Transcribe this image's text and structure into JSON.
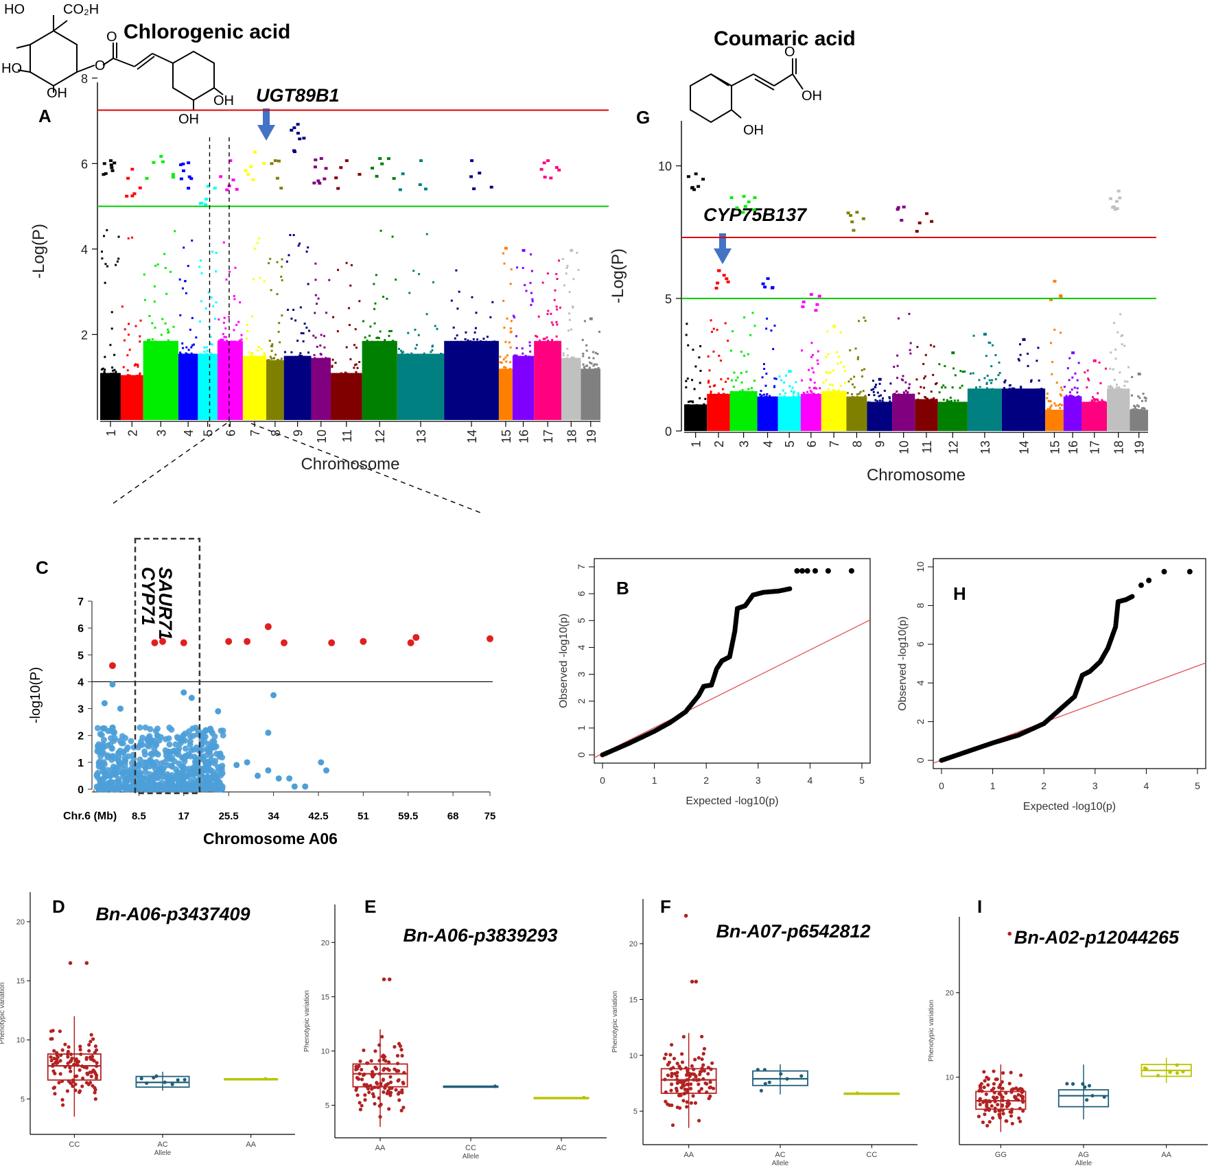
{
  "figure": {
    "chem_A": {
      "name": "Chlorogenic acid",
      "groups": [
        "HO",
        "CO₂H",
        "HO",
        "O",
        "O",
        "OH",
        "OH",
        "OH"
      ]
    },
    "chem_G": {
      "name": "Coumaric acid",
      "groups": [
        "O",
        "OH",
        "OH"
      ]
    }
  },
  "chart_data": [
    {
      "id": "A",
      "type": "scatter",
      "subtype": "manhattan",
      "title": "Chlorogenic acid",
      "xlabel": "Chromosome",
      "ylabel": "-Log(P)",
      "ylim": [
        0,
        7.9
      ],
      "yticks": [
        2,
        4,
        6,
        8
      ],
      "chromosomes": [
        "1",
        "2",
        "3",
        "4",
        "5",
        "6",
        "7",
        "8",
        "9",
        "10",
        "11",
        "12",
        "13",
        "14",
        "15",
        "16",
        "17",
        "18",
        "19"
      ],
      "bands": [
        [
          0,
          1.05
        ],
        [
          1.05,
          2.2
        ],
        [
          2.2,
          4.0
        ],
        [
          4.0,
          5.0
        ],
        [
          5.0,
          6.0
        ],
        [
          6.0,
          7.3
        ],
        [
          7.3,
          8.5
        ],
        [
          8.5,
          9.4
        ],
        [
          9.4,
          10.8
        ],
        [
          10.8,
          11.8
        ],
        [
          11.8,
          13.4
        ],
        [
          13.4,
          15.2
        ],
        [
          15.2,
          17.6
        ],
        [
          17.6,
          20.4
        ],
        [
          20.4,
          21.1
        ],
        [
          21.1,
          22.2
        ],
        [
          22.2,
          23.6
        ],
        [
          23.6,
          24.6
        ],
        [
          24.6,
          25.6
        ]
      ],
      "colors": [
        "#000000",
        "#ff0000",
        "#00ee00",
        "#0000ff",
        "#00ffff",
        "#ff00ff",
        "#ffff00",
        "#808000",
        "#000080",
        "#800080",
        "#800000",
        "#008000",
        "#008080",
        "#000080",
        "#ff8000",
        "#8000ff",
        "#ff0080",
        "#c0c0c0",
        "#808080"
      ],
      "baseline_top": [
        1.1,
        1.05,
        1.85,
        1.55,
        1.55,
        1.85,
        1.5,
        1.4,
        1.5,
        1.45,
        1.1,
        1.85,
        1.55,
        1.85,
        1.2,
        1.5,
        1.85,
        1.45,
        1.2
      ],
      "max_minuslog10p": [
        6.1,
        5.9,
        6.2,
        6.05,
        5.5,
        6.1,
        6.3,
        6.1,
        6.95,
        6.15,
        6.1,
        6.15,
        6.1,
        6.1,
        4.05,
        4.0,
        6.1,
        4.0,
        2.4
      ],
      "thresholds": [
        {
          "value": 7.25,
          "color": "#e00000"
        },
        {
          "value": 5.0,
          "color": "#00cc00"
        }
      ],
      "annotation": "UGT89B1",
      "dashed_region": {
        "from": 5.6,
        "to": 6.6
      }
    },
    {
      "id": "G",
      "type": "scatter",
      "subtype": "manhattan",
      "title": "Coumaric acid",
      "xlabel": "Chromosome",
      "ylabel": "-Log(P)",
      "ylim": [
        0,
        11.7
      ],
      "yticks": [
        0,
        5,
        10
      ],
      "chromosomes": [
        "1",
        "2",
        "3",
        "4",
        "5",
        "6",
        "7",
        "8",
        "9",
        "10",
        "11",
        "12",
        "13",
        "14",
        "15",
        "16",
        "17",
        "18",
        "19"
      ],
      "bands": [
        [
          0,
          1.0
        ],
        [
          1.0,
          2.0
        ],
        [
          2.0,
          3.2
        ],
        [
          3.2,
          4.1
        ],
        [
          4.1,
          5.1
        ],
        [
          5.1,
          6.0
        ],
        [
          6.0,
          7.1
        ],
        [
          7.1,
          8.0
        ],
        [
          8.0,
          9.1
        ],
        [
          9.1,
          10.1
        ],
        [
          10.1,
          11.1
        ],
        [
          11.1,
          12.4
        ],
        [
          12.4,
          13.9
        ],
        [
          13.9,
          15.8
        ],
        [
          15.8,
          16.6
        ],
        [
          16.6,
          17.4
        ],
        [
          17.4,
          18.5
        ],
        [
          18.5,
          19.5
        ],
        [
          19.5,
          20.3
        ]
      ],
      "colors": [
        "#000000",
        "#ff0000",
        "#00ee00",
        "#0000ff",
        "#00ffff",
        "#ff00ff",
        "#ffff00",
        "#808000",
        "#000080",
        "#800080",
        "#800000",
        "#008000",
        "#008080",
        "#000080",
        "#ff8000",
        "#8000ff",
        "#ff0080",
        "#c0c0c0",
        "#808080"
      ],
      "baseline_top": [
        1.0,
        1.4,
        1.5,
        1.3,
        1.3,
        1.4,
        1.5,
        1.3,
        1.1,
        1.4,
        1.2,
        1.1,
        1.6,
        1.6,
        0.8,
        1.3,
        1.1,
        1.6,
        0.8
      ],
      "max_minuslog10p": [
        9.75,
        6.1,
        8.9,
        5.8,
        2.3,
        5.2,
        4.0,
        8.3,
        2.0,
        8.5,
        8.25,
        3.0,
        3.7,
        3.5,
        5.7,
        3.0,
        2.7,
        9.1,
        2.2
      ],
      "thresholds": [
        {
          "value": 7.3,
          "color": "#e00000"
        },
        {
          "value": 5.0,
          "color": "#00cc00"
        }
      ],
      "annotation": "CYP75B137"
    },
    {
      "id": "C",
      "type": "scatter",
      "subtype": "regional",
      "xlabel": "Chromosome A06",
      "ylabel": "-log10(P)",
      "ylim": [
        0,
        7
      ],
      "yticks": [
        0,
        1,
        2,
        3,
        4,
        5,
        6,
        7
      ],
      "xtick_prefix": "Chr.6 (Mb)",
      "xticks": [
        "8.5",
        "17",
        "25.5",
        "34",
        "42.5",
        "51",
        "59.5",
        "68",
        "75"
      ],
      "xlim_mb": [
        0,
        75
      ],
      "threshold": 4.0,
      "genes": [
        "SAUR71",
        "CYP71"
      ],
      "box_mb": [
        7.8,
        20
      ],
      "significant_points": [
        [
          3.5,
          4.6
        ],
        [
          11.5,
          5.45
        ],
        [
          13,
          5.5
        ],
        [
          17,
          5.45
        ],
        [
          25.5,
          5.5
        ],
        [
          29,
          5.5
        ],
        [
          33,
          6.05
        ],
        [
          36,
          5.45
        ],
        [
          45,
          5.45
        ],
        [
          51,
          5.5
        ],
        [
          60,
          5.45
        ],
        [
          61,
          5.65
        ],
        [
          75,
          5.6
        ]
      ]
    },
    {
      "id": "B",
      "type": "scatter",
      "subtype": "qq",
      "xlabel": "Expected -log10(p)",
      "ylabel": "Observed -log10(p)",
      "xlim": [
        0,
        5
      ],
      "ylim": [
        0,
        7
      ],
      "xticks": [
        0,
        1,
        2,
        3,
        4,
        5
      ],
      "yticks": [
        0,
        1,
        2,
        3,
        4,
        5,
        6,
        7
      ],
      "curve": [
        [
          0,
          0
        ],
        [
          0.5,
          0.42
        ],
        [
          1,
          0.88
        ],
        [
          1.3,
          1.2
        ],
        [
          1.6,
          1.6
        ],
        [
          1.85,
          2.2
        ],
        [
          1.95,
          2.55
        ],
        [
          2.1,
          2.6
        ],
        [
          2.2,
          3.2
        ],
        [
          2.3,
          3.5
        ],
        [
          2.45,
          3.65
        ],
        [
          2.55,
          4.6
        ],
        [
          2.6,
          5.45
        ],
        [
          2.75,
          5.55
        ],
        [
          2.9,
          5.95
        ],
        [
          3.1,
          6.05
        ],
        [
          3.4,
          6.1
        ],
        [
          3.65,
          6.2
        ]
      ],
      "extra_points": [
        [
          3.75,
          6.85
        ],
        [
          3.85,
          6.85
        ],
        [
          3.95,
          6.85
        ],
        [
          4.1,
          6.85
        ],
        [
          4.35,
          6.85
        ],
        [
          4.8,
          6.85
        ]
      ]
    },
    {
      "id": "H",
      "type": "scatter",
      "subtype": "qq",
      "xlabel": "Expected -log10(p)",
      "ylabel": "Observed -log10(p)",
      "xlim": [
        0,
        5
      ],
      "ylim": [
        0,
        10
      ],
      "xticks": [
        0,
        1,
        2,
        3,
        4,
        5
      ],
      "yticks": [
        0,
        2,
        4,
        6,
        8,
        10
      ],
      "curve": [
        [
          0,
          0
        ],
        [
          0.5,
          0.45
        ],
        [
          1,
          0.9
        ],
        [
          1.5,
          1.3
        ],
        [
          2,
          1.9
        ],
        [
          2.3,
          2.6
        ],
        [
          2.6,
          3.3
        ],
        [
          2.75,
          4.4
        ],
        [
          2.9,
          4.6
        ],
        [
          3.1,
          5.1
        ],
        [
          3.25,
          5.8
        ],
        [
          3.4,
          6.9
        ],
        [
          3.45,
          8.2
        ],
        [
          3.6,
          8.3
        ],
        [
          3.75,
          8.5
        ]
      ],
      "extra_points": [
        [
          3.9,
          9.05
        ],
        [
          4.05,
          9.3
        ],
        [
          4.35,
          9.75
        ],
        [
          4.85,
          9.75
        ]
      ]
    },
    {
      "id": "D",
      "type": "box",
      "title": "Bn-A06-p3437409",
      "xlabel": "Allele",
      "ylabel": "Phenotypic variation",
      "ylim": [
        2,
        22.5
      ],
      "yticks": [
        5,
        10,
        15,
        20
      ],
      "categories": [
        "CC",
        "AC",
        "AA"
      ],
      "colors": [
        "#b22222",
        "#1f5f7a",
        "#b8c400"
      ],
      "boxes": [
        {
          "q1": 6.6,
          "median": 7.8,
          "q3": 8.8,
          "whisker_low": 3.5,
          "whisker_high": 12.0,
          "outliers": [
            16.5,
            16.5
          ]
        },
        {
          "q1": 6.0,
          "median": 6.4,
          "q3": 6.9,
          "whisker_low": 5.7,
          "whisker_high": 7.3,
          "outliers": []
        },
        {
          "q1": 6.7,
          "median": 6.7,
          "q3": 6.7,
          "whisker_low": 6.7,
          "whisker_high": 6.7,
          "outliers": []
        }
      ],
      "show_xlabel": true
    },
    {
      "id": "E",
      "type": "box",
      "title": "Bn-A06-p3839293",
      "xlabel": "Allele",
      "ylabel": "Phenotypic variation",
      "ylim": [
        2,
        23.5
      ],
      "yticks": [
        5,
        10,
        15,
        20
      ],
      "categories": [
        "AA",
        "CC",
        "AC"
      ],
      "colors": [
        "#b22222",
        "#1f5f7a",
        "#b8c400"
      ],
      "boxes": [
        {
          "q1": 6.7,
          "median": 7.9,
          "q3": 8.8,
          "whisker_low": 3.0,
          "whisker_high": 12.0,
          "outliers": [
            16.6,
            16.6
          ]
        },
        {
          "q1": 6.75,
          "median": 6.75,
          "q3": 6.75,
          "whisker_low": 6.75,
          "whisker_high": 6.75,
          "outliers": []
        },
        {
          "q1": 5.7,
          "median": 5.7,
          "q3": 5.7,
          "whisker_low": 5.7,
          "whisker_high": 5.7,
          "outliers": []
        }
      ],
      "show_xlabel": true
    },
    {
      "id": "F",
      "type": "box",
      "title": "Bn-A07-p6542812",
      "xlabel": "Allele",
      "ylabel": "Phenotypic variation",
      "ylim": [
        2,
        24
      ],
      "yticks": [
        5,
        10,
        15,
        20
      ],
      "categories": [
        "AA",
        "AC",
        "CC"
      ],
      "colors": [
        "#b22222",
        "#1f5f7a",
        "#b8c400"
      ],
      "boxes": [
        {
          "q1": 6.6,
          "median": 7.8,
          "q3": 8.8,
          "whisker_low": 3.5,
          "whisker_high": 12.0,
          "outliers": [
            16.6,
            16.6,
            22.5
          ]
        },
        {
          "q1": 7.3,
          "median": 7.9,
          "q3": 8.6,
          "whisker_low": 6.5,
          "whisker_high": 9.2,
          "outliers": []
        },
        {
          "q1": 6.6,
          "median": 6.6,
          "q3": 6.6,
          "whisker_low": 6.6,
          "whisker_high": 6.6,
          "outliers": []
        }
      ],
      "show_xlabel": true
    },
    {
      "id": "I",
      "type": "box",
      "title": "Bn-A02-p12044265",
      "xlabel": "Allele",
      "ylabel": "Phenotypic variation",
      "ylim": [
        2,
        29
      ],
      "yticks": [
        10,
        20
      ],
      "categories": [
        "GG",
        "AG",
        "AA"
      ],
      "colors": [
        "#b22222",
        "#1f5f7a",
        "#b8c400"
      ],
      "boxes": [
        {
          "q1": 6.2,
          "median": 7.2,
          "q3": 8.3,
          "whisker_low": 3.5,
          "whisker_high": 11.5,
          "outliers": [
            27.0
          ]
        },
        {
          "q1": 6.5,
          "median": 7.8,
          "q3": 8.5,
          "whisker_low": 5.0,
          "whisker_high": 11.5,
          "outliers": []
        },
        {
          "q1": 10.1,
          "median": 10.8,
          "q3": 11.5,
          "whisker_low": 9.3,
          "whisker_high": 12.3,
          "outliers": []
        }
      ],
      "show_xlabel": true
    }
  ]
}
